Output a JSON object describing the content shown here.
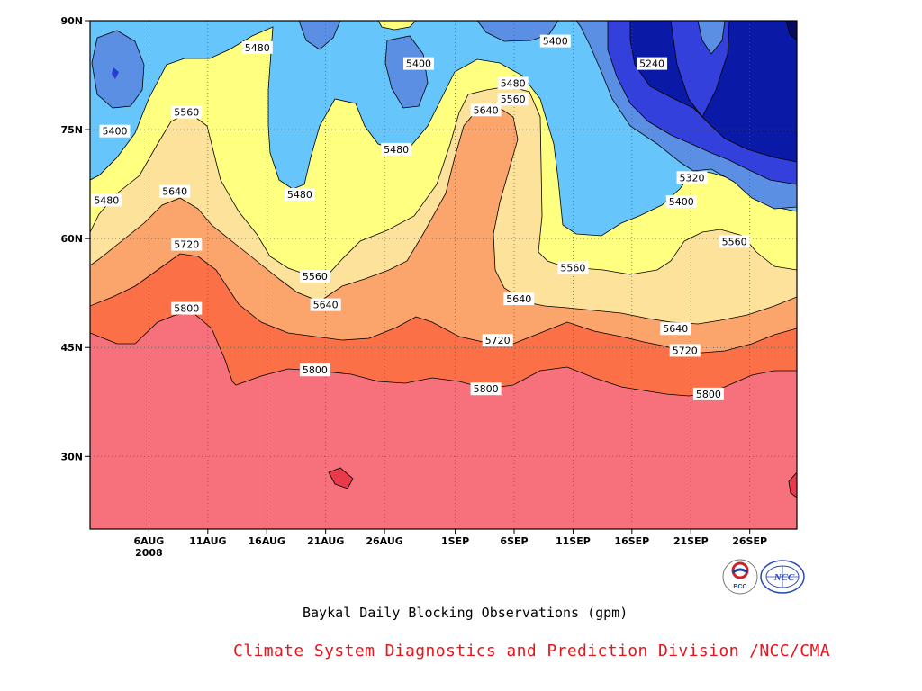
{
  "chart_data": {
    "type": "contour",
    "subtitle": "Baykal Daily Blocking Observations (gpm)",
    "xlabel": "",
    "ylabel": "",
    "x_ticks": [
      "6AUG\n2008",
      "11AUG",
      "16AUG",
      "21AUG",
      "26AUG",
      "1SEP",
      "6SEP",
      "11SEP",
      "16SEP",
      "21SEP",
      "26SEP"
    ],
    "x_tick_days": [
      5,
      10,
      15,
      20,
      25,
      31,
      36,
      41,
      46,
      51,
      56
    ],
    "x_range_days": [
      0,
      60
    ],
    "y_ticks": [
      "30N",
      "45N",
      "60N",
      "75N",
      "90N"
    ],
    "y_tick_values": [
      30,
      45,
      60,
      75,
      90
    ],
    "y_range": [
      20,
      90
    ],
    "contour_levels": [
      5240,
      5320,
      5400,
      5480,
      5560,
      5640,
      5720,
      5800
    ],
    "fill_colors": {
      "below_5240": "#0a1aa6",
      "5240_5320": "#3340dc",
      "5320_5400": "#5b8fe3",
      "5400_5480": "#66c6fb",
      "5480_5560": "#ffff80",
      "5560_5640": "#fde29c",
      "5640_5720": "#fba46b",
      "5720_5800": "#fb7046",
      "above_5800": "#f6717b"
    },
    "contour_labels": [
      {
        "text": "5480",
        "x": 14.2,
        "y": 86.3
      },
      {
        "text": "5400",
        "x": 27.9,
        "y": 84.1
      },
      {
        "text": "5400",
        "x": 39.5,
        "y": 87.2
      },
      {
        "text": "5240",
        "x": 47.7,
        "y": 84.1
      },
      {
        "text": "5480",
        "x": 35.9,
        "y": 81.4
      },
      {
        "text": "5560",
        "x": 35.9,
        "y": 79.2
      },
      {
        "text": "5560",
        "x": 8.2,
        "y": 77.4
      },
      {
        "text": "5640",
        "x": 33.6,
        "y": 77.7
      },
      {
        "text": "5400",
        "x": 2.1,
        "y": 74.8
      },
      {
        "text": "5480",
        "x": 26.0,
        "y": 72.3
      },
      {
        "text": "5320",
        "x": 51.1,
        "y": 68.4
      },
      {
        "text": "5640",
        "x": 7.2,
        "y": 66.5
      },
      {
        "text": "5480",
        "x": 17.8,
        "y": 66.1
      },
      {
        "text": "5480",
        "x": 1.4,
        "y": 65.3
      },
      {
        "text": "5400",
        "x": 50.2,
        "y": 65.1
      },
      {
        "text": "5720",
        "x": 8.2,
        "y": 59.2
      },
      {
        "text": "5560",
        "x": 54.7,
        "y": 59.6
      },
      {
        "text": "5560",
        "x": 41.0,
        "y": 56.0
      },
      {
        "text": "5560",
        "x": 19.1,
        "y": 54.8
      },
      {
        "text": "5640",
        "x": 36.4,
        "y": 51.7
      },
      {
        "text": "5640",
        "x": 20.0,
        "y": 50.9
      },
      {
        "text": "5800",
        "x": 8.2,
        "y": 50.4
      },
      {
        "text": "5640",
        "x": 49.7,
        "y": 47.6
      },
      {
        "text": "5720",
        "x": 34.6,
        "y": 46.0
      },
      {
        "text": "5720",
        "x": 50.5,
        "y": 44.6
      },
      {
        "text": "5800",
        "x": 19.1,
        "y": 41.9
      },
      {
        "text": "5800",
        "x": 33.6,
        "y": 39.3
      },
      {
        "text": "5800",
        "x": 52.5,
        "y": 38.6
      }
    ]
  },
  "footer": {
    "organization": "Climate System Diagnostics and Prediction Division /NCC/CMA",
    "logo_left_text": "BCC",
    "logo_right_text": "NCC"
  }
}
